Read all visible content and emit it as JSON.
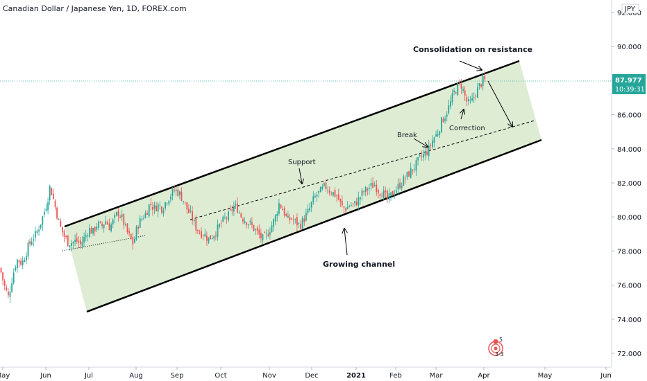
{
  "header": {
    "symbol_title": "Canadian Dollar / Japanese Yen, 1D, FOREX.com"
  },
  "currency_badge": "JPY",
  "price_badge": {
    "price": "87.977",
    "countdown": "10:39:31",
    "color": "#26a69a"
  },
  "colors": {
    "up": "#26a69a",
    "down": "#ef5350",
    "channel_fill": "#dcebd2",
    "channel_line": "#000000",
    "current_price_line": "#26a69a"
  },
  "annotations": {
    "consolidation": "Consolidation on resistance",
    "support": "Support",
    "break": "Break",
    "correction": "Correction",
    "growing_channel": "Growing channel"
  },
  "chart_data": {
    "type": "candlestick",
    "title": "Canadian Dollar / Japanese Yen, 1D, FOREX.com",
    "ylabel": "JPY",
    "ylim": [
      71.3,
      92.6
    ],
    "y_ticks": [
      "72.000",
      "74.000",
      "76.000",
      "78.000",
      "80.000",
      "82.000",
      "84.000",
      "86.000",
      "88.000",
      "90.000",
      "92.000"
    ],
    "x_ticks": [
      "May",
      "Jun",
      "Jul",
      "Aug",
      "Sep",
      "Oct",
      "Nov",
      "Dec",
      "2021",
      "Feb",
      "Mar",
      "Apr",
      "May",
      "Jun"
    ],
    "current_price": 87.977,
    "grid": false,
    "close_path": [
      [
        0,
        77.0
      ],
      [
        6,
        76.0
      ],
      [
        12,
        75.3
      ],
      [
        18,
        76.5
      ],
      [
        24,
        77.5
      ],
      [
        32,
        77.3
      ],
      [
        40,
        78.2
      ],
      [
        46,
        78.7
      ],
      [
        52,
        79.0
      ],
      [
        58,
        79.6
      ],
      [
        63,
        80.2
      ],
      [
        68,
        80.9
      ],
      [
        72,
        81.8
      ],
      [
        76,
        81.2
      ],
      [
        80,
        80.5
      ],
      [
        86,
        79.5
      ],
      [
        92,
        78.9
      ],
      [
        98,
        78.5
      ],
      [
        104,
        78.5
      ],
      [
        110,
        78.6
      ],
      [
        116,
        78.4
      ],
      [
        122,
        78.8
      ],
      [
        128,
        79.3
      ],
      [
        134,
        79.1
      ],
      [
        140,
        79.6
      ],
      [
        146,
        79.4
      ],
      [
        152,
        79.8
      ],
      [
        158,
        79.4
      ],
      [
        164,
        79.8
      ],
      [
        170,
        80.3
      ],
      [
        176,
        79.9
      ],
      [
        182,
        79.2
      ],
      [
        188,
        78.7
      ],
      [
        192,
        78.4
      ],
      [
        198,
        79.5
      ],
      [
        204,
        79.9
      ],
      [
        210,
        80.2
      ],
      [
        216,
        80.8
      ],
      [
        222,
        80.5
      ],
      [
        228,
        80.7
      ],
      [
        234,
        80.5
      ],
      [
        240,
        81.0
      ],
      [
        246,
        81.3
      ],
      [
        252,
        81.6
      ],
      [
        258,
        81.4
      ],
      [
        264,
        81.0
      ],
      [
        270,
        80.4
      ],
      [
        276,
        80.0
      ],
      [
        282,
        79.4
      ],
      [
        288,
        79.1
      ],
      [
        294,
        79.0
      ],
      [
        300,
        78.7
      ],
      [
        306,
        78.9
      ],
      [
        312,
        79.2
      ],
      [
        318,
        79.6
      ],
      [
        324,
        79.9
      ],
      [
        330,
        80.1
      ],
      [
        336,
        80.6
      ],
      [
        342,
        80.5
      ],
      [
        348,
        80.0
      ],
      [
        354,
        79.8
      ],
      [
        360,
        79.6
      ],
      [
        366,
        79.3
      ],
      [
        372,
        79.0
      ],
      [
        378,
        78.7
      ],
      [
        384,
        78.9
      ],
      [
        390,
        79.4
      ],
      [
        396,
        79.9
      ],
      [
        402,
        80.8
      ],
      [
        408,
        80.4
      ],
      [
        414,
        79.8
      ],
      [
        420,
        79.9
      ],
      [
        426,
        79.7
      ],
      [
        432,
        79.5
      ],
      [
        438,
        79.9
      ],
      [
        444,
        80.3
      ],
      [
        450,
        80.9
      ],
      [
        456,
        81.3
      ],
      [
        462,
        81.5
      ],
      [
        468,
        81.8
      ],
      [
        474,
        81.6
      ],
      [
        480,
        81.4
      ],
      [
        486,
        81.2
      ],
      [
        492,
        80.6
      ],
      [
        498,
        80.5
      ],
      [
        504,
        80.7
      ],
      [
        510,
        80.7
      ],
      [
        516,
        81.0
      ],
      [
        522,
        81.4
      ],
      [
        528,
        81.6
      ],
      [
        534,
        81.8
      ],
      [
        540,
        81.9
      ],
      [
        546,
        81.5
      ],
      [
        552,
        81.4
      ],
      [
        558,
        81.0
      ],
      [
        564,
        81.3
      ],
      [
        570,
        81.6
      ],
      [
        576,
        81.9
      ],
      [
        582,
        82.2
      ],
      [
        588,
        82.5
      ],
      [
        594,
        82.8
      ],
      [
        600,
        83.1
      ],
      [
        606,
        83.5
      ],
      [
        612,
        83.7
      ],
      [
        618,
        84.0
      ],
      [
        624,
        84.6
      ],
      [
        630,
        84.9
      ],
      [
        636,
        85.6
      ],
      [
        642,
        86.0
      ],
      [
        648,
        86.6
      ],
      [
        654,
        87.3
      ],
      [
        660,
        87.7
      ],
      [
        664,
        87.8
      ],
      [
        668,
        87.3
      ],
      [
        672,
        86.8
      ],
      [
        676,
        86.6
      ],
      [
        680,
        86.8
      ],
      [
        684,
        87.2
      ],
      [
        688,
        87.5
      ],
      [
        692,
        87.8
      ],
      [
        696,
        88.0
      ],
      [
        700,
        88.0
      ]
    ]
  }
}
